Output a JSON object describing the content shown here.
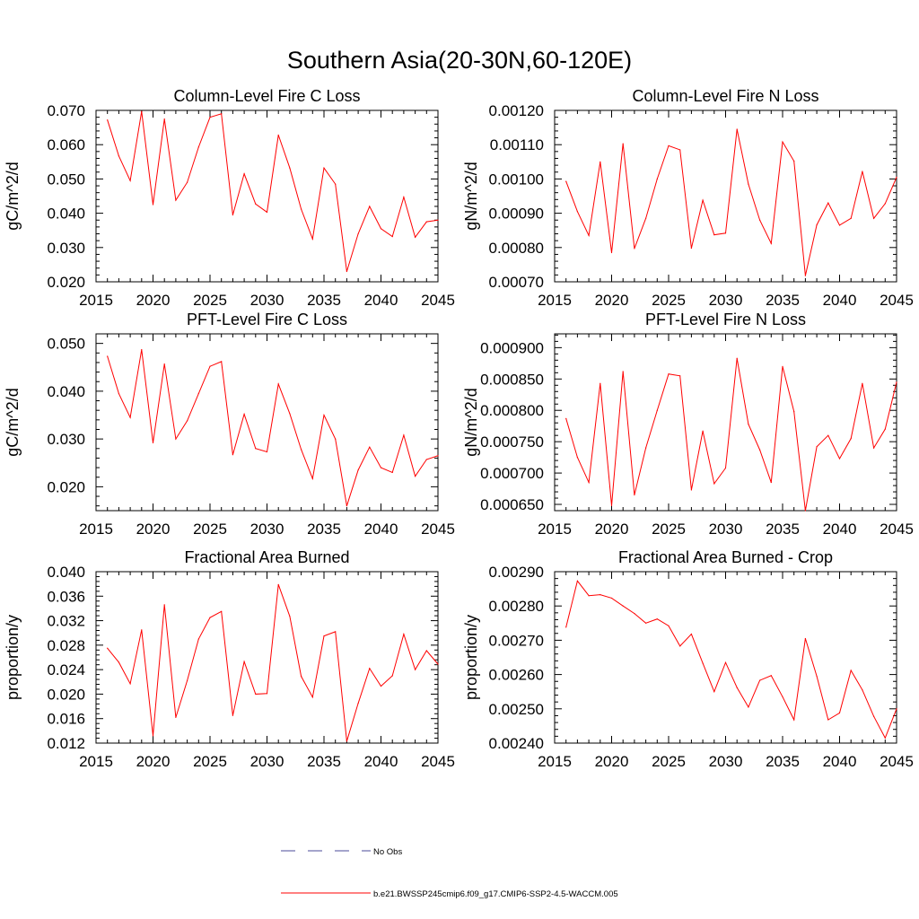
{
  "figure_title": "Southern Asia(20-30N,60-120E)",
  "colors": {
    "model_line": "#ff0000",
    "obs_line": "#4a4a9a",
    "axis": "#000000"
  },
  "legend": [
    {
      "label": "No Obs",
      "style": "dashed",
      "color": "#4a4a9a"
    },
    {
      "label": "b.e21.BWSSP245cmip6.f09_g17.CMIP6-SSP2-4.5-WACCM.005",
      "style": "solid",
      "color": "#ff0000"
    }
  ],
  "chart_data": [
    {
      "type": "line",
      "title": "Column-Level Fire C Loss",
      "ylabel": "gC/m^2/d",
      "xlim": [
        2015,
        2045
      ],
      "ylim": [
        0.02,
        0.07
      ],
      "xticks": [
        2015,
        2020,
        2025,
        2030,
        2035,
        2040,
        2045
      ],
      "yticks": [
        0.02,
        0.03,
        0.04,
        0.05,
        0.06,
        0.07
      ],
      "ytick_labels": [
        "0.020",
        "0.030",
        "0.040",
        "0.050",
        "0.060",
        "0.070"
      ],
      "x": [
        2016,
        2017,
        2018,
        2019,
        2020,
        2021,
        2022,
        2023,
        2024,
        2025,
        2026,
        2027,
        2028,
        2029,
        2030,
        2031,
        2032,
        2033,
        2034,
        2035,
        2036,
        2037,
        2038,
        2039,
        2040,
        2041,
        2042,
        2043,
        2044,
        2045
      ],
      "values": [
        0.0672,
        0.0567,
        0.0495,
        0.0697,
        0.0425,
        0.0675,
        0.0438,
        0.049,
        0.0593,
        0.068,
        0.069,
        0.0395,
        0.0515,
        0.0427,
        0.0403,
        0.0628,
        0.0532,
        0.0412,
        0.0325,
        0.0532,
        0.0485,
        0.023,
        0.034,
        0.042,
        0.0355,
        0.0332,
        0.0447,
        0.033,
        0.0375,
        0.038
      ]
    },
    {
      "type": "line",
      "title": "Column-Level Fire N Loss",
      "ylabel": "gN/m^2/d",
      "xlim": [
        2015,
        2045
      ],
      "ylim": [
        0.0007,
        0.0012
      ],
      "xticks": [
        2015,
        2020,
        2025,
        2030,
        2035,
        2040,
        2045
      ],
      "yticks": [
        0.0007,
        0.0008,
        0.0009,
        0.001,
        0.0011,
        0.0012
      ],
      "ytick_labels": [
        "0.00070",
        "0.00080",
        "0.00090",
        "0.00100",
        "0.00110",
        "0.00120"
      ],
      "x": [
        2016,
        2017,
        2018,
        2019,
        2020,
        2021,
        2022,
        2023,
        2024,
        2025,
        2026,
        2027,
        2028,
        2029,
        2030,
        2031,
        2032,
        2033,
        2034,
        2035,
        2036,
        2037,
        2038,
        2039,
        2040,
        2041,
        2042,
        2043,
        2044,
        2045
      ],
      "values": [
        0.000993,
        0.000905,
        0.000835,
        0.00105,
        0.000785,
        0.001103,
        0.000797,
        0.000885,
        0.001,
        0.001097,
        0.001085,
        0.000798,
        0.000938,
        0.000837,
        0.000842,
        0.001145,
        0.000985,
        0.00088,
        0.000812,
        0.001108,
        0.001052,
        0.000718,
        0.000866,
        0.00093,
        0.000865,
        0.000885,
        0.001022,
        0.000885,
        0.000928,
        0.001005
      ]
    },
    {
      "type": "line",
      "title": "PFT-Level Fire C Loss",
      "ylabel": "gC/m^2/d",
      "xlim": [
        2015,
        2045
      ],
      "ylim": [
        0.015,
        0.052
      ],
      "xticks": [
        2015,
        2020,
        2025,
        2030,
        2035,
        2040,
        2045
      ],
      "yticks": [
        0.02,
        0.03,
        0.04,
        0.05
      ],
      "ytick_labels": [
        "0.020",
        "0.030",
        "0.040",
        "0.050"
      ],
      "x": [
        2016,
        2017,
        2018,
        2019,
        2020,
        2021,
        2022,
        2023,
        2024,
        2025,
        2026,
        2027,
        2028,
        2029,
        2030,
        2031,
        2032,
        2033,
        2034,
        2035,
        2036,
        2037,
        2038,
        2039,
        2040,
        2041,
        2042,
        2043,
        2044,
        2045
      ],
      "values": [
        0.0473,
        0.0395,
        0.0345,
        0.0487,
        0.0292,
        0.0457,
        0.03,
        0.0338,
        0.0395,
        0.0452,
        0.0462,
        0.0267,
        0.0352,
        0.028,
        0.0273,
        0.0415,
        0.0353,
        0.0278,
        0.0217,
        0.035,
        0.03,
        0.016,
        0.0235,
        0.0283,
        0.024,
        0.023,
        0.0308,
        0.0222,
        0.0257,
        0.0265
      ]
    },
    {
      "type": "line",
      "title": "PFT-Level Fire N Loss",
      "ylabel": "gN/m^2/d",
      "xlim": [
        2015,
        2045
      ],
      "ylim": [
        0.00064,
        0.000922
      ],
      "xticks": [
        2015,
        2020,
        2025,
        2030,
        2035,
        2040,
        2045
      ],
      "yticks": [
        0.00065,
        0.0007,
        0.00075,
        0.0008,
        0.00085,
        0.0009
      ],
      "ytick_labels": [
        "0.000650",
        "0.000700",
        "0.000750",
        "0.000800",
        "0.000850",
        "0.000900"
      ],
      "x": [
        2016,
        2017,
        2018,
        2019,
        2020,
        2021,
        2022,
        2023,
        2024,
        2025,
        2026,
        2027,
        2028,
        2029,
        2030,
        2031,
        2032,
        2033,
        2034,
        2035,
        2036,
        2037,
        2038,
        2039,
        2040,
        2041,
        2042,
        2043,
        2044,
        2045
      ],
      "values": [
        0.000787,
        0.000725,
        0.000685,
        0.000843,
        0.000648,
        0.000862,
        0.000665,
        0.00074,
        0.0008,
        0.000858,
        0.000855,
        0.000673,
        0.000767,
        0.000683,
        0.000708,
        0.000883,
        0.000778,
        0.000737,
        0.000685,
        0.00087,
        0.000798,
        0.00064,
        0.000742,
        0.00076,
        0.000723,
        0.000755,
        0.000843,
        0.00074,
        0.00077,
        0.000845
      ]
    },
    {
      "type": "line",
      "title": "Fractional Area Burned",
      "ylabel": "proportion/y",
      "xlim": [
        2015,
        2045
      ],
      "ylim": [
        0.012,
        0.04
      ],
      "xticks": [
        2015,
        2020,
        2025,
        2030,
        2035,
        2040,
        2045
      ],
      "yticks": [
        0.012,
        0.016,
        0.02,
        0.024,
        0.028,
        0.032,
        0.036,
        0.04
      ],
      "ytick_labels": [
        "0.012",
        "0.016",
        "0.020",
        "0.024",
        "0.028",
        "0.032",
        "0.036",
        "0.040"
      ],
      "x": [
        2016,
        2017,
        2018,
        2019,
        2020,
        2021,
        2022,
        2023,
        2024,
        2025,
        2026,
        2027,
        2028,
        2029,
        2030,
        2031,
        2032,
        2033,
        2034,
        2035,
        2036,
        2037,
        2038,
        2039,
        2040,
        2041,
        2042,
        2043,
        2044,
        2045
      ],
      "values": [
        0.0275,
        0.0252,
        0.0217,
        0.0305,
        0.0132,
        0.0346,
        0.0162,
        0.0222,
        0.029,
        0.0325,
        0.0335,
        0.0165,
        0.0253,
        0.02,
        0.0201,
        0.0379,
        0.0327,
        0.0229,
        0.0195,
        0.0295,
        0.0302,
        0.0123,
        0.0185,
        0.0242,
        0.0213,
        0.023,
        0.0298,
        0.024,
        0.0271,
        0.0249
      ]
    },
    {
      "type": "line",
      "title": "Fractional Area Burned - Crop",
      "ylabel": "proportion/y",
      "xlim": [
        2015,
        2045
      ],
      "ylim": [
        0.0024,
        0.0029
      ],
      "xticks": [
        2015,
        2020,
        2025,
        2030,
        2035,
        2040,
        2045
      ],
      "yticks": [
        0.0024,
        0.0025,
        0.0026,
        0.0027,
        0.0028,
        0.0029
      ],
      "ytick_labels": [
        "0.00240",
        "0.00250",
        "0.00260",
        "0.00270",
        "0.00280",
        "0.00290"
      ],
      "x": [
        2016,
        2017,
        2018,
        2019,
        2020,
        2021,
        2022,
        2023,
        2024,
        2025,
        2026,
        2027,
        2028,
        2029,
        2030,
        2031,
        2032,
        2033,
        2034,
        2035,
        2036,
        2037,
        2038,
        2039,
        2040,
        2041,
        2042,
        2043,
        2044,
        2045
      ],
      "values": [
        0.002738,
        0.002873,
        0.00283,
        0.002833,
        0.002823,
        0.0028,
        0.002778,
        0.00275,
        0.002762,
        0.002742,
        0.002683,
        0.002718,
        0.002633,
        0.00255,
        0.002635,
        0.002562,
        0.002505,
        0.002583,
        0.002597,
        0.002535,
        0.002468,
        0.002705,
        0.002595,
        0.002468,
        0.002488,
        0.002612,
        0.002555,
        0.002478,
        0.002415,
        0.0025
      ]
    }
  ]
}
